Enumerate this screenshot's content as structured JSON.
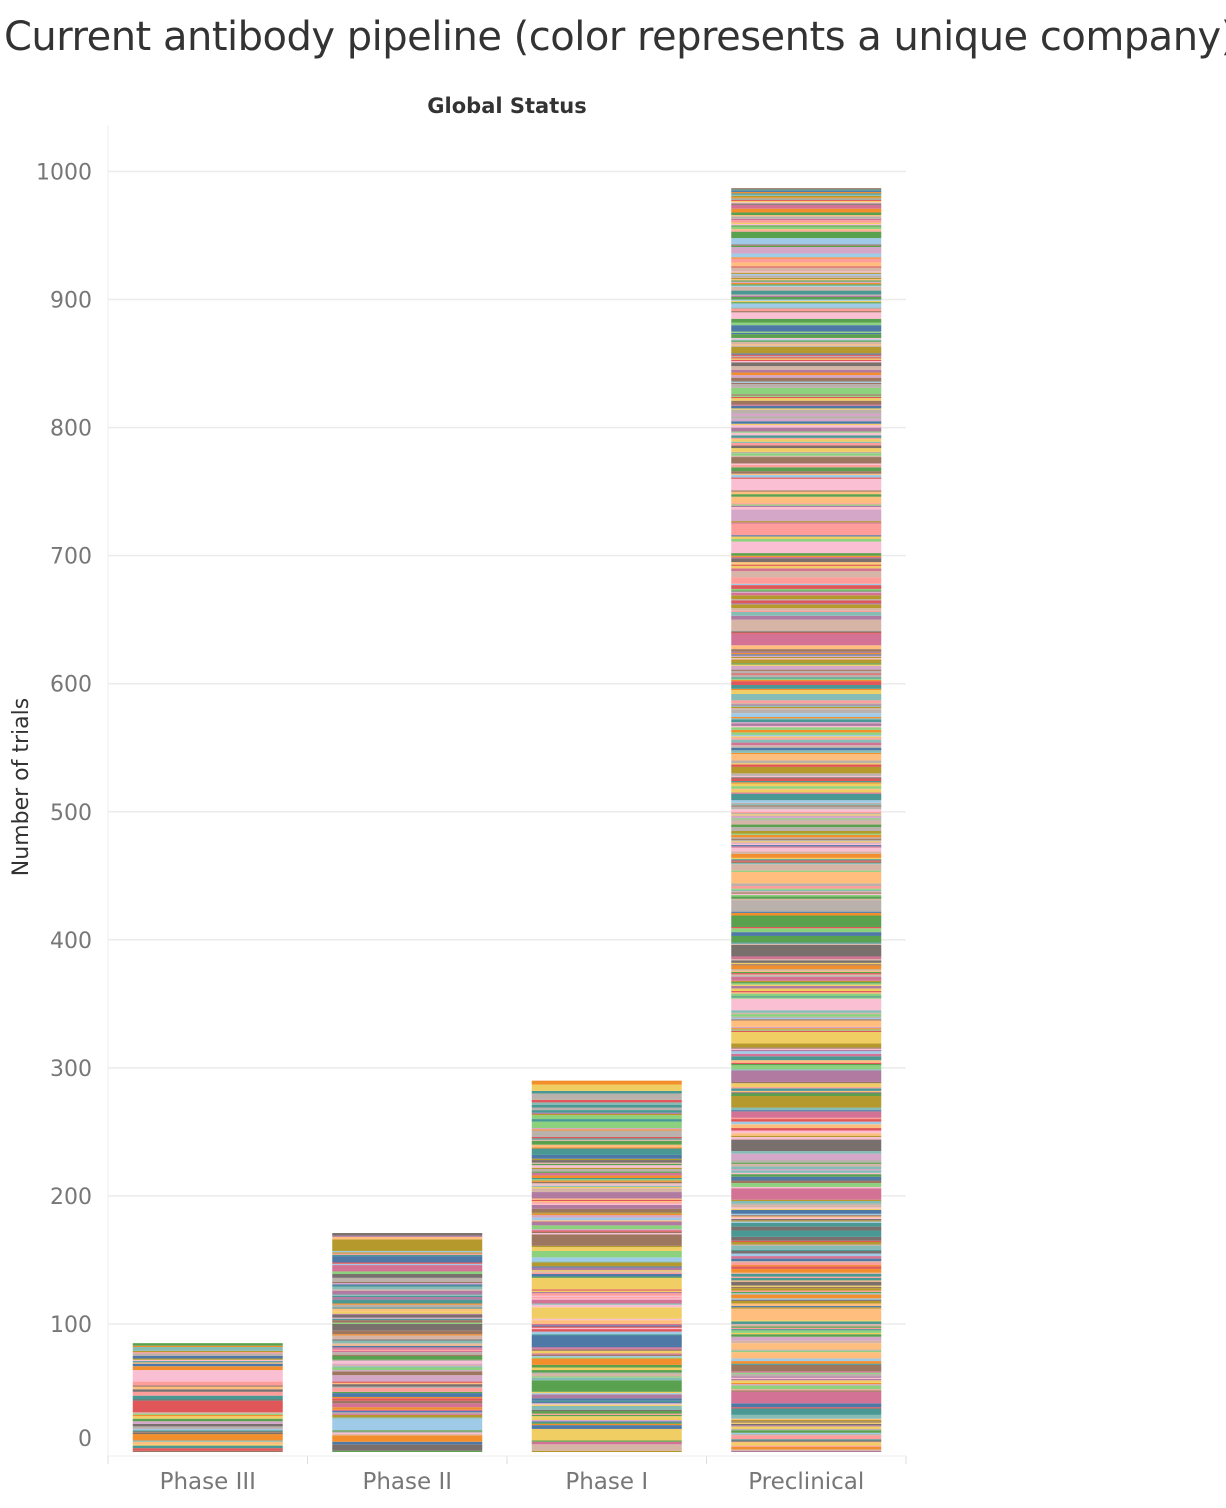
{
  "chart_data": {
    "type": "bar",
    "stacked": true,
    "title": "Current antibody pipeline (color represents a unique company)",
    "column_header": "Global Status",
    "ylabel": "Number of trials",
    "xlabel": "",
    "categories": [
      "Phase III",
      "Phase II",
      "Phase I",
      "Preclinical"
    ],
    "values": [
      85,
      171,
      290,
      987
    ],
    "ylim": [
      0,
      1000
    ],
    "yticks": [
      0,
      100,
      200,
      300,
      400,
      500,
      600,
      700,
      800,
      900,
      1000
    ],
    "grid": true,
    "legend": "none",
    "palette": [
      "#4e79a7",
      "#a0cbe8",
      "#f28e2b",
      "#ffbe7d",
      "#59a14f",
      "#8cd17d",
      "#b6992d",
      "#f1ce63",
      "#499894",
      "#86bcb6",
      "#e15759",
      "#ff9d9a",
      "#79706e",
      "#bab0ac",
      "#d37295",
      "#fabfd2",
      "#b07aa1",
      "#d4a6c8",
      "#9d7660",
      "#d7b5a6"
    ]
  }
}
